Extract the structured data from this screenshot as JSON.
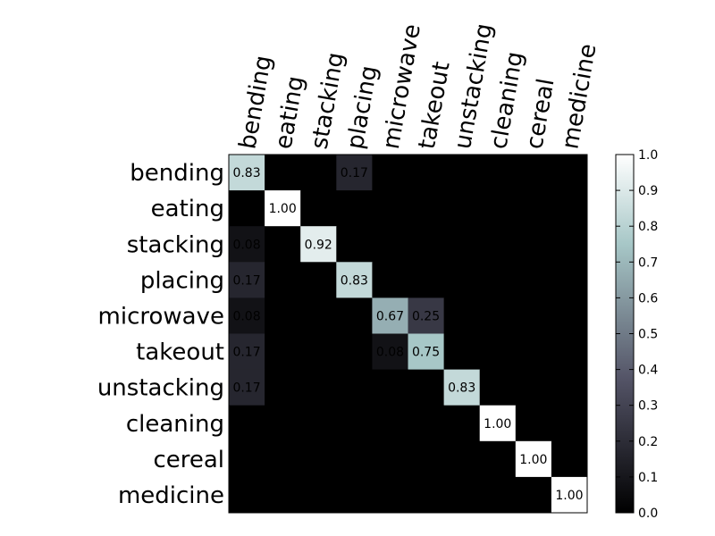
{
  "chart_data": {
    "type": "heatmap",
    "title": "",
    "xlabel": "",
    "ylabel": "",
    "row_labels": [
      "bending",
      "eating",
      "stacking",
      "placing",
      "microwave",
      "takeout",
      "unstacking",
      "cleaning",
      "cereal",
      "medicine"
    ],
    "col_labels": [
      "bending",
      "eating",
      "stacking",
      "placing",
      "microwave",
      "takeout",
      "unstacking",
      "cleaning",
      "cereal",
      "medicine"
    ],
    "values": [
      [
        0.83,
        0.0,
        0.0,
        0.17,
        0.0,
        0.0,
        0.0,
        0.0,
        0.0,
        0.0
      ],
      [
        0.0,
        1.0,
        0.0,
        0.0,
        0.0,
        0.0,
        0.0,
        0.0,
        0.0,
        0.0
      ],
      [
        0.08,
        0.0,
        0.92,
        0.0,
        0.0,
        0.0,
        0.0,
        0.0,
        0.0,
        0.0
      ],
      [
        0.17,
        0.0,
        0.0,
        0.83,
        0.0,
        0.0,
        0.0,
        0.0,
        0.0,
        0.0
      ],
      [
        0.08,
        0.0,
        0.0,
        0.0,
        0.67,
        0.25,
        0.0,
        0.0,
        0.0,
        0.0
      ],
      [
        0.17,
        0.0,
        0.0,
        0.0,
        0.08,
        0.75,
        0.0,
        0.0,
        0.0,
        0.0
      ],
      [
        0.17,
        0.0,
        0.0,
        0.0,
        0.0,
        0.0,
        0.83,
        0.0,
        0.0,
        0.0
      ],
      [
        0.0,
        0.0,
        0.0,
        0.0,
        0.0,
        0.0,
        0.0,
        1.0,
        0.0,
        0.0
      ],
      [
        0.0,
        0.0,
        0.0,
        0.0,
        0.0,
        0.0,
        0.0,
        0.0,
        1.0,
        0.0
      ],
      [
        0.0,
        0.0,
        0.0,
        0.0,
        0.0,
        0.0,
        0.0,
        0.0,
        0.0,
        1.0
      ]
    ],
    "value_format": "2dp",
    "colorbar": {
      "range": [
        0.0,
        1.0
      ],
      "ticks": [
        "0.0",
        "0.1",
        "0.2",
        "0.3",
        "0.4",
        "0.5",
        "0.6",
        "0.7",
        "0.8",
        "0.9",
        "1.0"
      ]
    },
    "colormap": "bone",
    "colormap_stops": [
      "#000000",
      "#545467",
      "#a7c7c7",
      "#ffffff"
    ],
    "grid": false,
    "legend": "colorbar-right"
  }
}
